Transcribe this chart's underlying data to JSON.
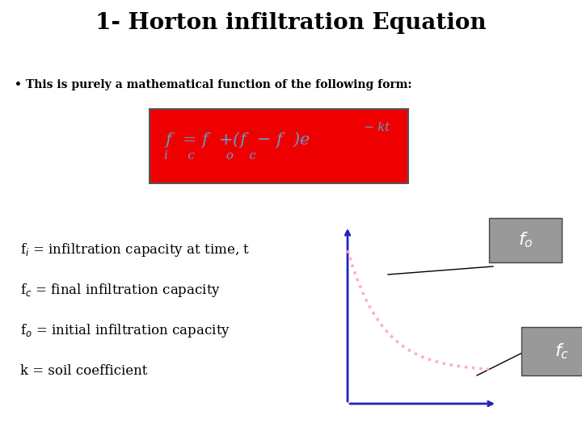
{
  "title": "1- Horton infiltration Equation",
  "bullet_text": "This is purely a mathematical function of the following form:",
  "bg_color": "#ffffff",
  "title_fontsize": 20,
  "bullet_fontsize": 10,
  "label_fontsize": 12,
  "eq_bg_color": "#ee0000",
  "eq_text_color": "#6699cc",
  "box_label_color": "#ffffff",
  "box_fg_color": "#999999",
  "curve_color": "#ffaacc",
  "axis_color": "#2222bb",
  "line_color": "#000000"
}
